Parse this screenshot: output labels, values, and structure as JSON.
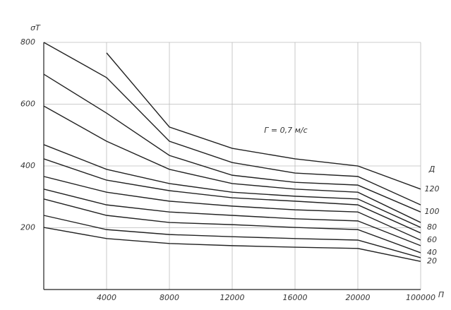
{
  "chart_data": {
    "type": "line",
    "y_label": "σТ",
    "x_label": "П",
    "legend_title": "Д",
    "annotation": "Г = 0,7 м/с",
    "categories": [
      null,
      "4000",
      "8000",
      "12000",
      "16000",
      "20000",
      "100000"
    ],
    "ylim": [
      0,
      800
    ],
    "yticks": [
      200,
      400,
      600,
      800
    ],
    "grid": true,
    "series": [
      {
        "name": "120",
        "color": "#222",
        "values": [
          null,
          766,
          526,
          457,
          423,
          400,
          325
        ]
      },
      {
        "color": "#222",
        "values": [
          800,
          686,
          480,
          411,
          377,
          366,
          274
        ]
      },
      {
        "name": "100",
        "color": "#222",
        "values": [
          697,
          571,
          434,
          370,
          347,
          338,
          251
        ]
      },
      {
        "color": "#222",
        "values": [
          594,
          480,
          389,
          343,
          325,
          315,
          217
        ]
      },
      {
        "name": "80",
        "color": "#222",
        "values": [
          469,
          389,
          343,
          315,
          302,
          293,
          201
        ]
      },
      {
        "color": "#222",
        "values": [
          423,
          354,
          320,
          297,
          286,
          274,
          183
        ]
      },
      {
        "name": "60",
        "color": "#222",
        "values": [
          366,
          315,
          286,
          270,
          258,
          251,
          160
        ]
      },
      {
        "color": "#222",
        "values": [
          325,
          274,
          251,
          240,
          229,
          222,
          142
        ]
      },
      {
        "name": "40",
        "color": "#222",
        "values": [
          293,
          240,
          217,
          210,
          201,
          194,
          119
        ]
      },
      {
        "color": "#222",
        "values": [
          240,
          194,
          178,
          171,
          165,
          160,
          103
        ]
      },
      {
        "name": "20",
        "color": "#222",
        "values": [
          201,
          165,
          149,
          142,
          137,
          133,
          91
        ]
      }
    ]
  }
}
